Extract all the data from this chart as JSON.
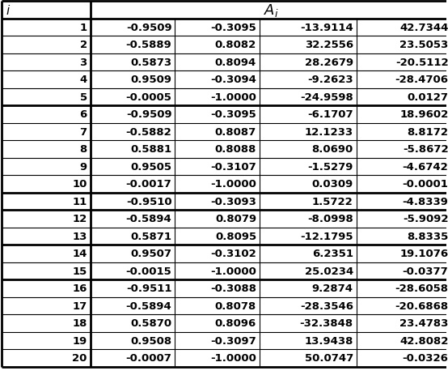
{
  "headers": [
    "i",
    "A_i"
  ],
  "col1_header": "i",
  "col2_header": "A_i",
  "rows": [
    [
      1,
      "-0.9509",
      "-0.3095",
      "-13.9114",
      "42.7344"
    ],
    [
      2,
      "-0.5889",
      "0.8082",
      "32.2556",
      "23.5053"
    ],
    [
      3,
      "0.5873",
      "0.8094",
      "28.2679",
      "-20.5112"
    ],
    [
      4,
      "0.9509",
      "-0.3094",
      "-9.2623",
      "-28.4706"
    ],
    [
      5,
      "-0.0005",
      "-1.0000",
      "-24.9598",
      "0.0127"
    ],
    [
      6,
      "-0.9509",
      "-0.3095",
      "-6.1707",
      "18.9602"
    ],
    [
      7,
      "-0.5882",
      "0.8087",
      "12.1233",
      "8.8172"
    ],
    [
      8,
      "0.5881",
      "0.8088",
      "8.0690",
      "-5.8672"
    ],
    [
      9,
      "0.9505",
      "-0.3107",
      "-1.5279",
      "-4.6742"
    ],
    [
      10,
      "-0.0017",
      "-1.0000",
      "0.0309",
      "-0.0001"
    ],
    [
      11,
      "-0.9510",
      "-0.3093",
      "1.5722",
      "-4.8339"
    ],
    [
      12,
      "-0.5894",
      "0.8079",
      "-8.0998",
      "-5.9092"
    ],
    [
      13,
      "0.5871",
      "0.8095",
      "-12.1795",
      "8.8335"
    ],
    [
      14,
      "0.9507",
      "-0.3102",
      "6.2351",
      "19.1076"
    ],
    [
      15,
      "-0.0015",
      "-1.0000",
      "25.0234",
      "-0.0377"
    ],
    [
      16,
      "-0.9511",
      "-0.3088",
      "9.2874",
      "-28.6058"
    ],
    [
      17,
      "-0.5894",
      "0.8078",
      "-28.3546",
      "-20.6868"
    ],
    [
      18,
      "0.5870",
      "0.8096",
      "-32.3848",
      "23.4783"
    ],
    [
      19,
      "0.9508",
      "-0.3097",
      "13.9438",
      "42.8082"
    ],
    [
      20,
      "-0.0007",
      "-1.0000",
      "50.0747",
      "-0.0326"
    ]
  ],
  "thick_borders_after": [
    0,
    5,
    10,
    11,
    13,
    15,
    19
  ],
  "background_color": "#ffffff",
  "text_color": "#000000",
  "font_size": 9.5
}
